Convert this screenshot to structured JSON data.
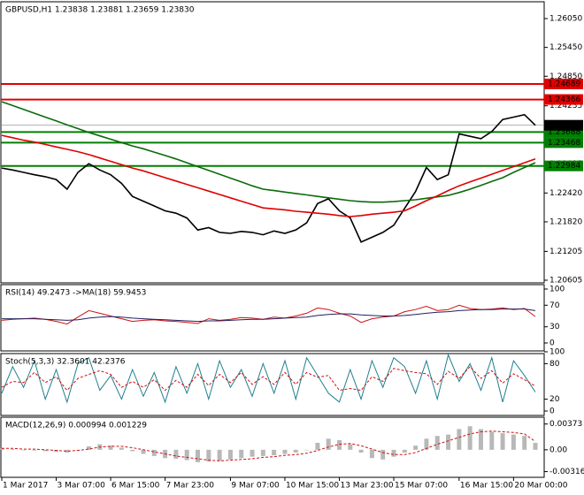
{
  "chart_data": [
    {
      "type": "line",
      "title": "GBPUSD,H1  1.23838 1.23881 1.23659 1.23830",
      "ylim": [
        1.2055,
        1.264
      ],
      "yticks": [
        {
          "value": 1.2605,
          "label": "1.26050"
        },
        {
          "value": 1.2545,
          "label": "1.25450"
        },
        {
          "value": 1.2485,
          "label": "1.24850"
        },
        1.24235,
        {
          "value": 1.2363,
          "label": "1.23630"
        },
        1.23025,
        {
          "value": 1.2242,
          "label": "1.22420"
        },
        {
          "value": 1.2182,
          "label": "1.21820"
        },
        1.21205,
        1.20605
      ],
      "levels": [
        {
          "value": 1.24689,
          "color": "#e00000"
        },
        {
          "value": 1.24366,
          "color": "#e00000"
        },
        {
          "value": 1.23688,
          "color": "#008000"
        },
        {
          "value": 1.23468,
          "color": "#008000"
        },
        {
          "value": 1.22984,
          "color": "#008000"
        }
      ],
      "current_price": {
        "value": 1.2383,
        "label": "1.23830"
      },
      "series": [
        {
          "color": "#000000",
          "values": [
            1.2294,
            1.229,
            1.2285,
            1.228,
            1.2276,
            1.227,
            1.225,
            1.2285,
            1.2303,
            1.229,
            1.228,
            1.2262,
            1.2235,
            1.2225,
            1.2215,
            1.2205,
            1.22,
            1.219,
            1.2165,
            1.217,
            1.216,
            1.2158,
            1.2162,
            1.216,
            1.2155,
            1.2163,
            1.2158,
            1.2165,
            1.218,
            1.222,
            1.223,
            1.2205,
            1.219,
            1.214,
            1.215,
            1.216,
            1.2175,
            1.221,
            1.2245,
            1.2295,
            1.227,
            1.228,
            1.2365,
            1.236,
            1.2355,
            1.237,
            1.2395,
            1.24,
            1.2405,
            1.2383
          ]
        },
        {
          "color": "#0a6b0a",
          "values": [
            1.2432,
            1.2424,
            1.2416,
            1.2408,
            1.24,
            1.2392,
            1.2384,
            1.2376,
            1.2368,
            1.2361,
            1.2354,
            1.2347,
            1.234,
            1.2334,
            1.2327,
            1.232,
            1.2313,
            1.2305,
            1.2297,
            1.2289,
            1.2281,
            1.2273,
            1.2265,
            1.2257,
            1.225,
            1.2247,
            1.2244,
            1.2241,
            1.2238,
            1.2235,
            1.2232,
            1.2229,
            1.2226,
            1.2224,
            1.2223,
            1.2223,
            1.2224,
            1.2226,
            1.2228,
            1.2231,
            1.2234,
            1.2237,
            1.2243,
            1.225,
            1.2258,
            1.2266,
            1.2274,
            1.2285,
            1.2295,
            1.2305
          ]
        },
        {
          "color": "#e00000",
          "values": [
            1.2362,
            1.2357,
            1.2352,
            1.2348,
            1.2343,
            1.2338,
            1.2333,
            1.2328,
            1.2322,
            1.2315,
            1.2308,
            1.2301,
            1.2294,
            1.2288,
            1.2281,
            1.2274,
            1.2267,
            1.226,
            1.2253,
            1.2246,
            1.2239,
            1.2232,
            1.2225,
            1.2218,
            1.2211,
            1.2209,
            1.2207,
            1.2204,
            1.2202,
            1.22,
            1.2198,
            1.2195,
            1.2193,
            1.2195,
            1.2198,
            1.22,
            1.2202,
            1.2205,
            1.2215,
            1.2226,
            1.2236,
            1.2247,
            1.2257,
            1.2265,
            1.2273,
            1.2281,
            1.2289,
            1.2297,
            1.2305,
            1.2313
          ]
        }
      ]
    },
    {
      "type": "line",
      "title": "RSI(14) 49.2473  ->MA(18) 59.9453",
      "ylim": [
        0,
        100
      ],
      "yticks": [
        100,
        70,
        30,
        0
      ],
      "series": [
        {
          "color": "#d01010",
          "values": [
            42,
            44,
            45,
            46,
            44,
            40,
            35,
            48,
            60,
            55,
            50,
            45,
            40,
            42,
            43,
            41,
            40,
            38,
            36,
            45,
            42,
            44,
            47,
            46,
            44,
            48,
            46,
            50,
            55,
            65,
            62,
            55,
            50,
            38,
            45,
            48,
            50,
            58,
            62,
            68,
            60,
            62,
            70,
            64,
            62,
            63,
            65,
            62,
            64,
            49
          ]
        },
        {
          "color": "#202060",
          "values": [
            45,
            45,
            45,
            45,
            44,
            43,
            42,
            43,
            46,
            48,
            49,
            48,
            46,
            45,
            44,
            43,
            42,
            41,
            40,
            41,
            41,
            42,
            43,
            44,
            44,
            45,
            46,
            47,
            48,
            51,
            53,
            54,
            54,
            52,
            51,
            50,
            50,
            51,
            53,
            55,
            57,
            58,
            60,
            61,
            62,
            62,
            63,
            63,
            63,
            60
          ]
        }
      ]
    },
    {
      "type": "line",
      "title": "Stoch(5,3,3) 32.3601 42.2376",
      "ylim": [
        0,
        100
      ],
      "yticks": [
        100,
        80,
        20,
        0
      ],
      "series": [
        {
          "color": "#1f7f8f",
          "values": [
            30,
            75,
            40,
            85,
            20,
            70,
            15,
            80,
            90,
            35,
            60,
            20,
            70,
            25,
            65,
            15,
            75,
            30,
            80,
            20,
            85,
            40,
            70,
            25,
            80,
            30,
            85,
            20,
            90,
            60,
            30,
            15,
            70,
            20,
            85,
            40,
            90,
            75,
            30,
            85,
            20,
            95,
            50,
            80,
            35,
            90,
            15,
            85,
            60,
            32
          ]
        },
        {
          "color": "#d01010",
          "dash": true,
          "values": [
            40,
            50,
            48,
            65,
            48,
            58,
            35,
            55,
            62,
            68,
            62,
            40,
            50,
            40,
            53,
            35,
            52,
            40,
            62,
            43,
            62,
            48,
            65,
            45,
            58,
            45,
            65,
            45,
            65,
            57,
            60,
            35,
            38,
            35,
            58,
            50,
            72,
            68,
            65,
            63,
            45,
            67,
            55,
            75,
            55,
            68,
            47,
            63,
            53,
            42
          ]
        }
      ]
    },
    {
      "type": "bar",
      "title": "MACD(12,26,9) 0.000994 0.001229",
      "ylim": [
        -0.0036,
        0.0042
      ],
      "yticks": [
        0.00373,
        {
          "value": 0,
          "label": "0.00"
        },
        -0.00316
      ],
      "categories": [
        "1 Mar 2017",
        null,
        null,
        null,
        null,
        "3 Mar 07:00",
        null,
        null,
        null,
        null,
        "6 Mar 15:00",
        null,
        null,
        null,
        null,
        "7 Mar 23:00",
        null,
        null,
        null,
        null,
        null,
        "9 Mar 07:00",
        null,
        null,
        null,
        null,
        "10 Mar 15:00",
        null,
        null,
        null,
        null,
        "13 Mar 23:00",
        null,
        null,
        null,
        null,
        "15 Mar 07:00",
        null,
        null,
        null,
        null,
        null,
        "16 Mar 15:00",
        null,
        null,
        null,
        null,
        "20 Mar 00:00",
        null,
        null
      ],
      "series": [
        {
          "color": "#b8b8b8",
          "style": "bar",
          "values": [
            0.0002,
            0.0001,
            0.0,
            -0.0001,
            -0.0002,
            -0.0003,
            -0.0004,
            0.0,
            0.0005,
            0.0008,
            0.0006,
            0.0003,
            -0.0002,
            -0.0006,
            -0.0009,
            -0.0012,
            -0.0013,
            -0.0015,
            -0.0018,
            -0.0017,
            -0.0016,
            -0.0014,
            -0.0012,
            -0.001,
            -0.0009,
            -0.0008,
            -0.0006,
            -0.0004,
            0.0,
            0.001,
            0.0016,
            0.0014,
            0.0008,
            -0.0004,
            -0.0012,
            -0.0014,
            -0.001,
            -0.0004,
            0.0006,
            0.0016,
            0.002,
            0.0022,
            0.003,
            0.0034,
            0.003,
            0.0026,
            0.0024,
            0.0022,
            0.002,
            0.001
          ]
        },
        {
          "color": "#d01010",
          "dash": true,
          "values": [
            0.0002,
            0.0002,
            0.0001,
            0.0001,
            0.0,
            -0.0001,
            -0.0002,
            -0.0001,
            0.0001,
            0.0004,
            0.0005,
            0.0005,
            0.0003,
            0.0,
            -0.0003,
            -0.0006,
            -0.0009,
            -0.0011,
            -0.0013,
            -0.0015,
            -0.0016,
            -0.0015,
            -0.0014,
            -0.0013,
            -0.0011,
            -0.001,
            -0.0008,
            -0.0007,
            -0.0005,
            -0.0001,
            0.0004,
            0.0008,
            0.0009,
            0.0006,
            0.0001,
            -0.0004,
            -0.0007,
            -0.0007,
            -0.0004,
            0.0002,
            0.0008,
            0.0013,
            0.0018,
            0.0023,
            0.0026,
            0.0027,
            0.0026,
            0.0025,
            0.0023,
            0.0012
          ]
        }
      ]
    }
  ]
}
